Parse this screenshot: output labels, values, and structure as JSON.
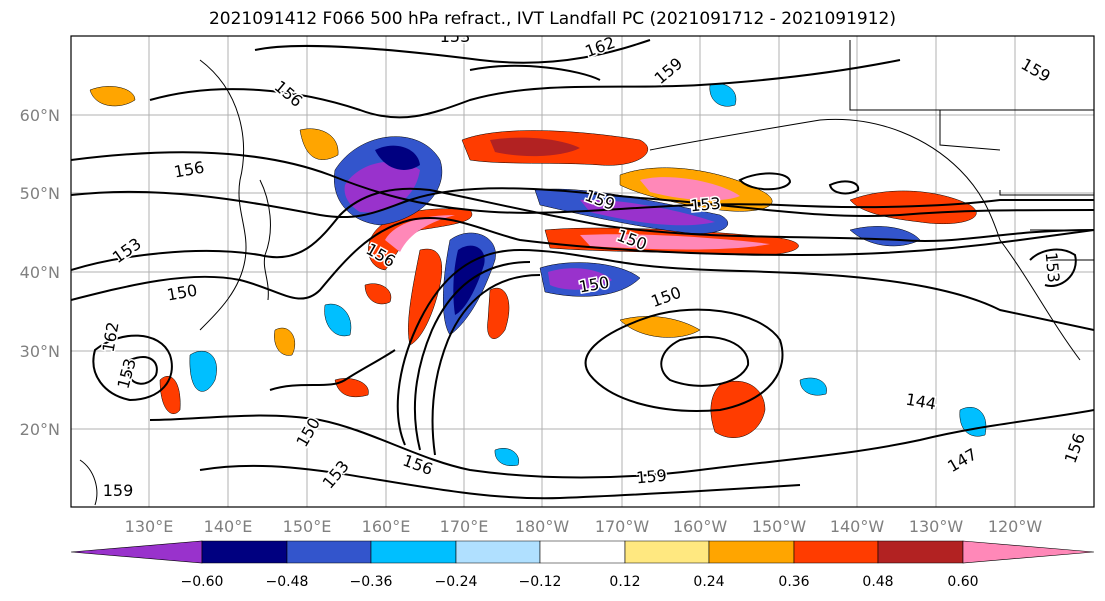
{
  "title": "2021091412 F066 500 hPa refract., IVT Landfall PC (2021091712 - 2021091912)",
  "lat_labels": [
    "60°N",
    "50°N",
    "40°N",
    "30°N",
    "20°N"
  ],
  "lon_labels": [
    "130°E",
    "140°E",
    "150°E",
    "160°E",
    "170°E",
    "180°W",
    "170°W",
    "160°W",
    "150°W",
    "140°W",
    "130°W",
    "120°W"
  ],
  "contour_labels": [
    "153",
    "156",
    "162",
    "159",
    "156",
    "153",
    "150",
    "159",
    "153",
    "156",
    "150",
    "162",
    "159",
    "153",
    "150",
    "150",
    "144",
    "153",
    "156",
    "150",
    "153",
    "159",
    "147",
    "156",
    "159"
  ],
  "colorbar": {
    "ticks": [
      "−0.60",
      "−0.48",
      "−0.36",
      "−0.24",
      "−0.12",
      "0.12",
      "0.24",
      "0.36",
      "0.48",
      "0.60"
    ],
    "colors": [
      "#9932cc",
      "#000080",
      "#3355cc",
      "#00bfff",
      "#b0e0ff",
      "#ffffff",
      "#ffe880",
      "#ffa500",
      "#ff3c00",
      "#b22222",
      "#ff88b8"
    ]
  }
}
